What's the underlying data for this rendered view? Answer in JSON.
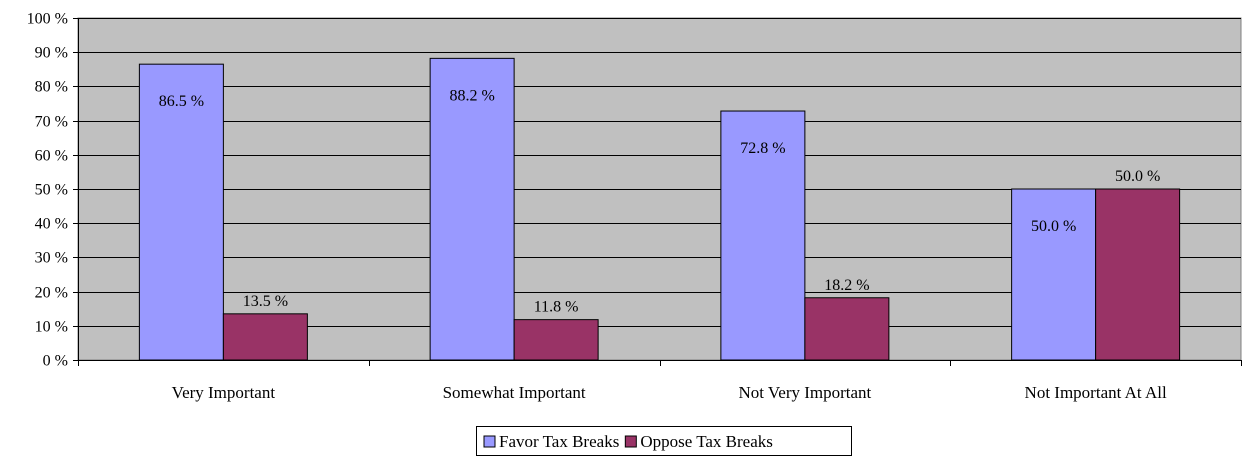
{
  "chart_data": {
    "type": "bar",
    "title": "",
    "xlabel": "",
    "ylabel": "",
    "ylim": [
      0,
      100
    ],
    "ytick_step": 10,
    "ytick_labels": [
      "0 %",
      "10 %",
      "20 %",
      "30 %",
      "40 %",
      "50 %",
      "60 %",
      "70 %",
      "80 %",
      "90 %",
      "100 %"
    ],
    "grid": "horizontal",
    "plot_background": "#c0c0c0",
    "legend_position": "bottom",
    "categories": [
      "Very Important",
      "Somewhat Important",
      "Not Very Important",
      "Not Important At All"
    ],
    "series": [
      {
        "name": "Favor Tax Breaks",
        "color": "#9999ff",
        "values": [
          86.5,
          88.2,
          72.8,
          50.0
        ],
        "labels": [
          "86.5 %",
          "88.2 %",
          "72.8 %",
          "50.0 %"
        ],
        "label_position": "inside"
      },
      {
        "name": "Oppose Tax Breaks",
        "color": "#993366",
        "values": [
          13.5,
          11.8,
          18.2,
          50.0
        ],
        "labels": [
          "13.5 %",
          "11.8 %",
          "18.2 %",
          "50.0 %"
        ],
        "label_position": "above"
      }
    ]
  }
}
